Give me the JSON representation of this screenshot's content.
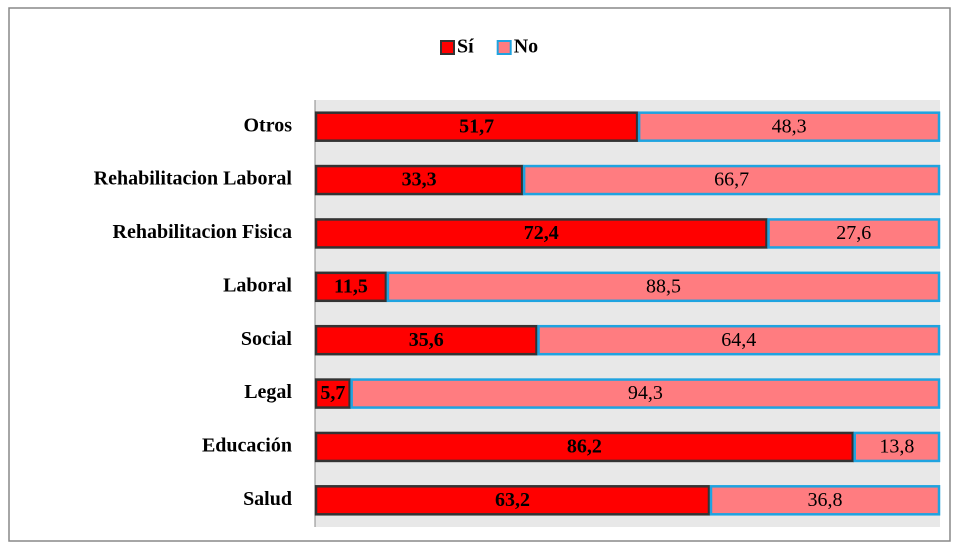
{
  "chart_data": {
    "type": "stacked_bar_horizontal",
    "categories": [
      "Otros",
      "Rehabilitacion Laboral",
      "Rehabilitacion Fisica",
      "Laboral",
      "Social",
      "Legal",
      "Educación",
      "Salud"
    ],
    "series": [
      {
        "name": "Sí",
        "color": "#ff0000",
        "border": "#333333",
        "values": [
          51.7,
          33.3,
          72.4,
          11.5,
          35.6,
          5.7,
          86.2,
          63.2
        ],
        "value_labels": [
          "51,7",
          "33,3",
          "72,4",
          "11,5",
          "35,6",
          "5,7",
          "86,2",
          "63,2"
        ]
      },
      {
        "name": "No",
        "color": "#ff7c80",
        "border": "#1fa3e0",
        "values": [
          48.3,
          66.7,
          27.6,
          88.5,
          64.4,
          94.3,
          13.8,
          36.8
        ],
        "value_labels": [
          "48,3",
          "66,7",
          "27,6",
          "88,5",
          "64,4",
          "94,3",
          "13,8",
          "36,8"
        ]
      }
    ],
    "xlim": [
      0,
      100
    ],
    "legend": "top"
  }
}
